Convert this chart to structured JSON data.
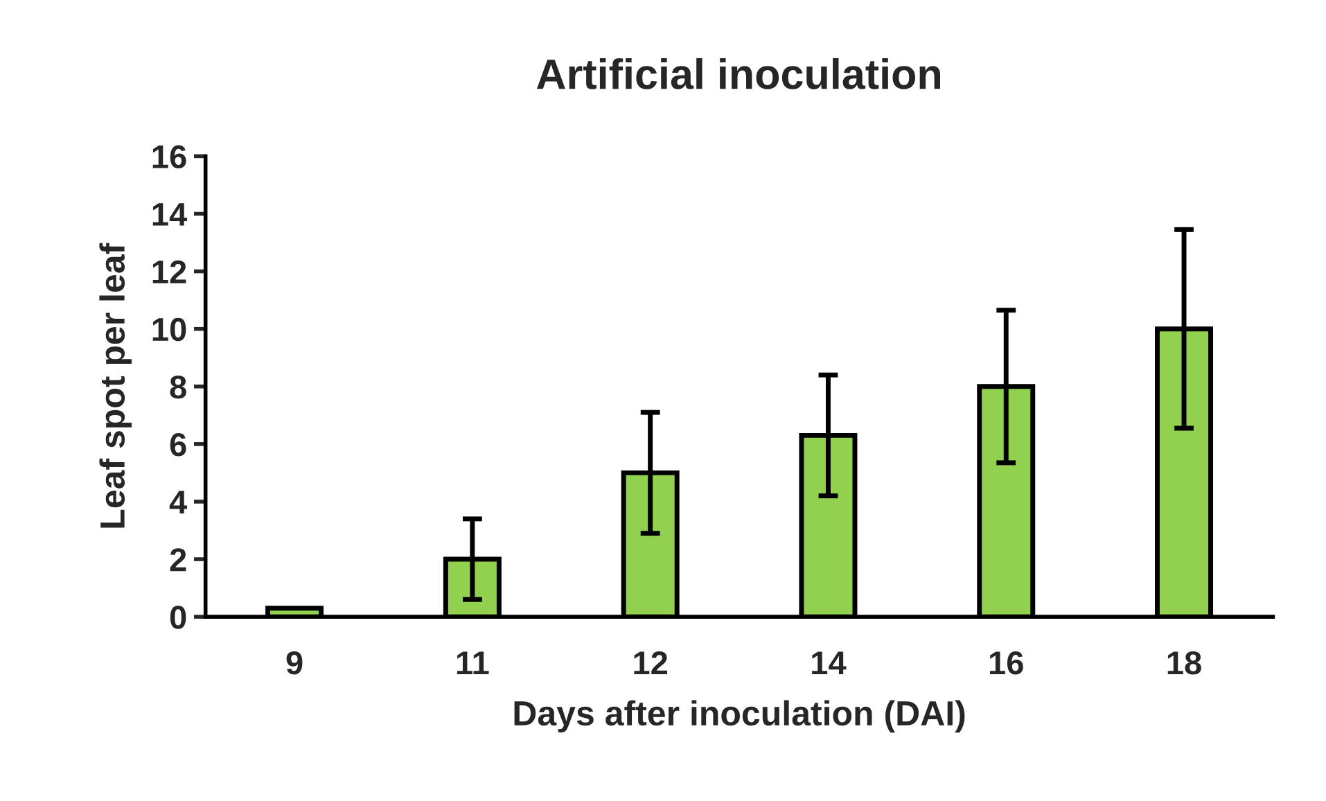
{
  "chart_data": {
    "type": "bar",
    "title": "Artificial inoculation",
    "xlabel": "Days after inoculation (DAI)",
    "ylabel": "Leaf spot per leaf",
    "categories": [
      "9",
      "11",
      "12",
      "14",
      "16",
      "18"
    ],
    "values": [
      0.3,
      2,
      5,
      6.3,
      8,
      10
    ],
    "errors": [
      null,
      1.4,
      2.1,
      2.1,
      2.65,
      3.45
    ],
    "color": "#92d050",
    "ylim": [
      0,
      16
    ],
    "yticks": [
      0,
      2,
      4,
      6,
      8,
      10,
      12,
      14,
      16
    ],
    "grid": false,
    "legend": false
  }
}
